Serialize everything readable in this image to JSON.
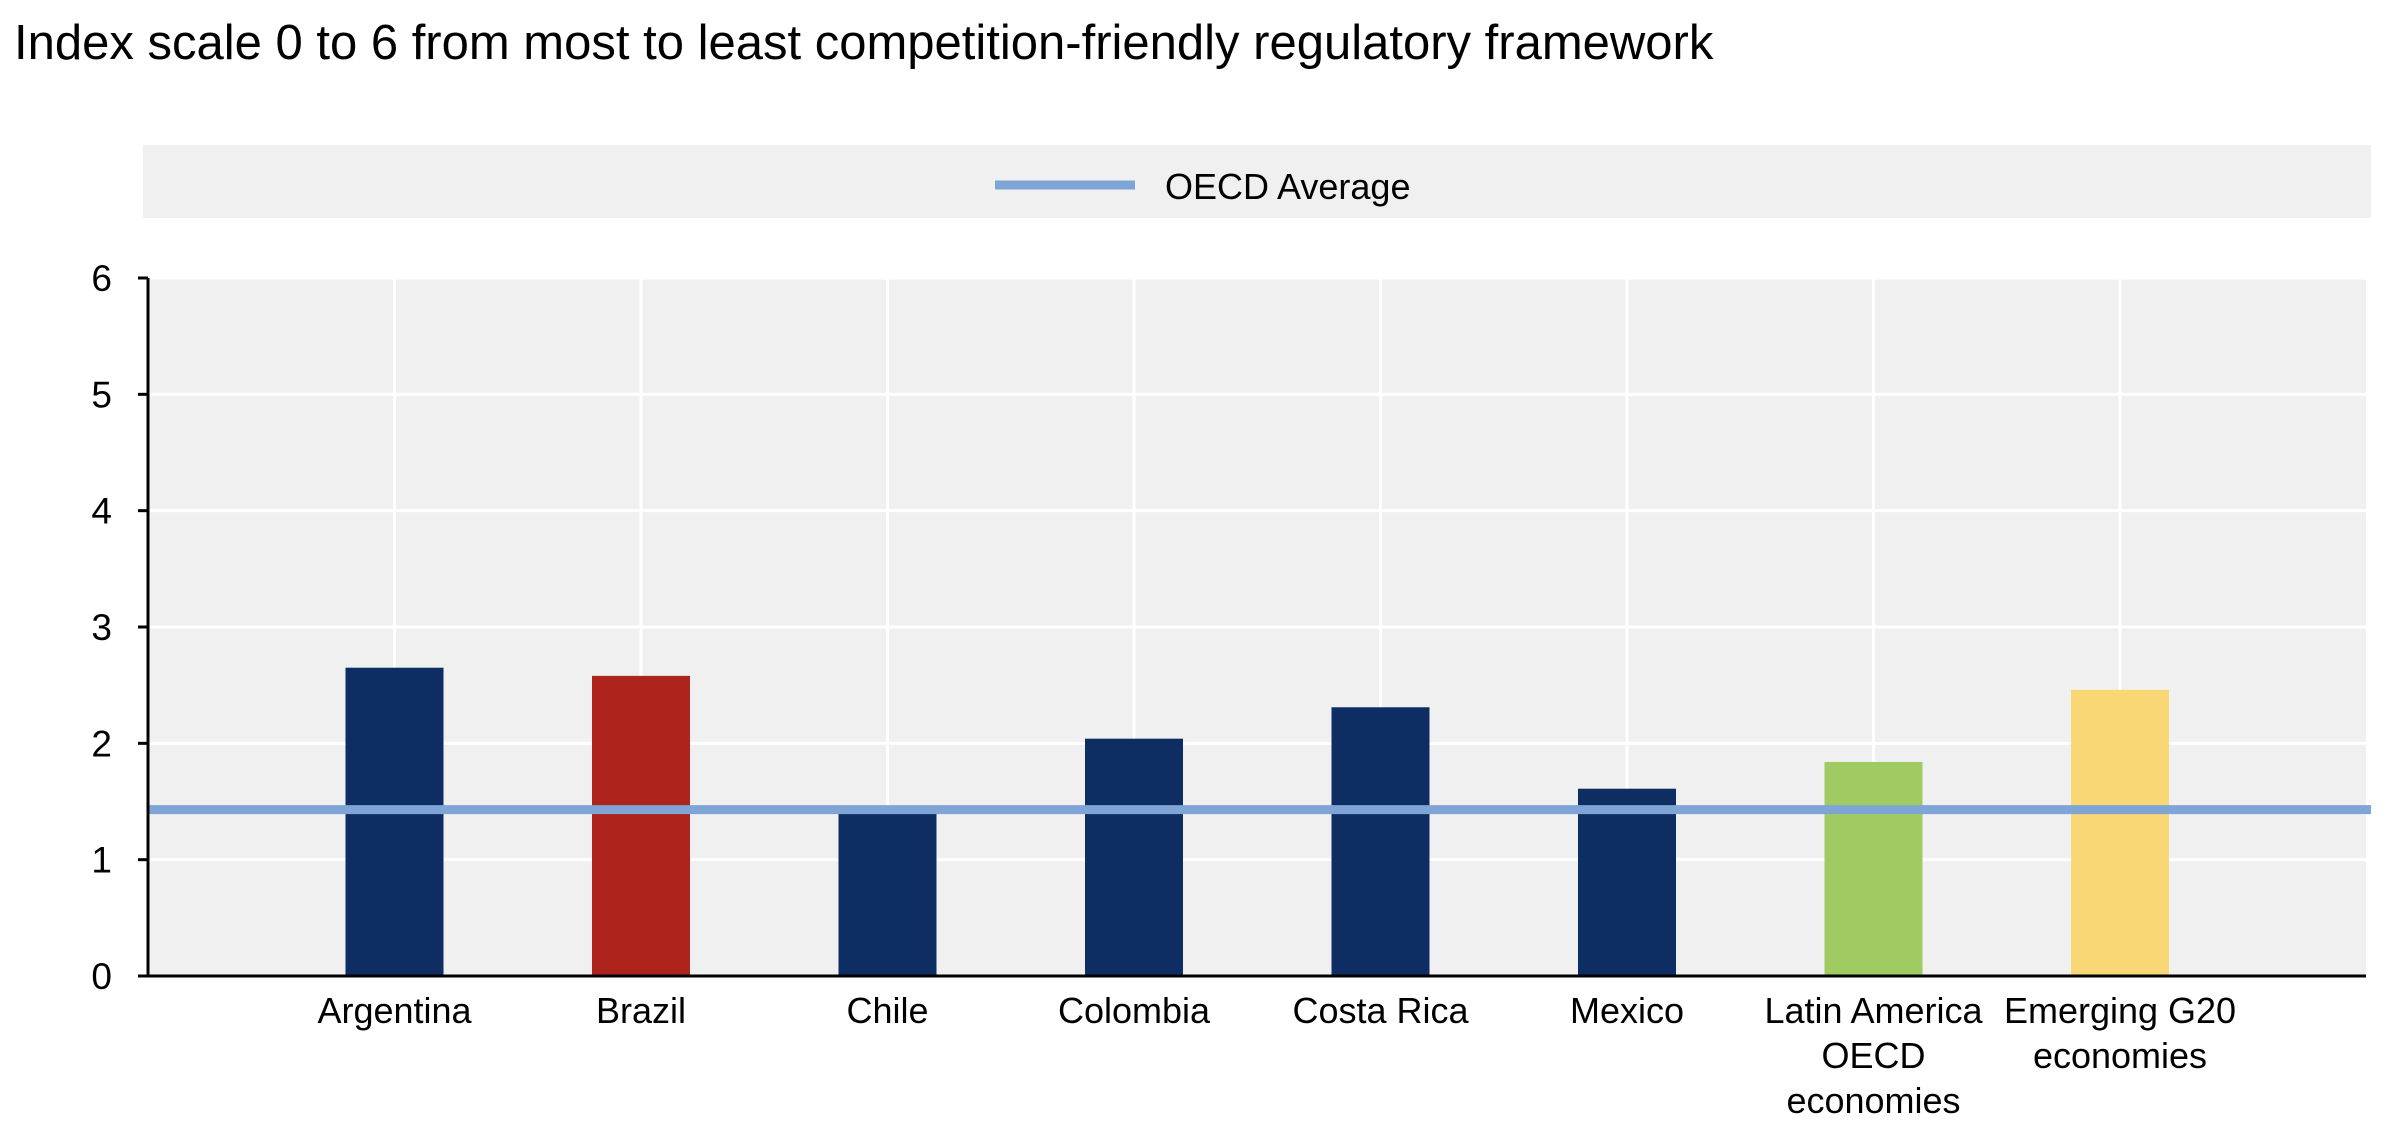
{
  "chart_data": {
    "type": "bar",
    "title": "Index scale 0 to 6 from most to least competition-friendly regulatory framework",
    "xlabel": "",
    "ylabel": "",
    "ylim": [
      0,
      6
    ],
    "yticks": [
      "0",
      "1",
      "2",
      "3",
      "4",
      "5",
      "6"
    ],
    "grid": true,
    "legend_position": "top",
    "categories": [
      [
        "Argentina"
      ],
      [
        "Brazil"
      ],
      [
        "Chile"
      ],
      [
        "Colombia"
      ],
      [
        "Costa Rica"
      ],
      [
        "Mexico"
      ],
      [
        "Latin America",
        "OECD",
        "economies"
      ],
      [
        "Emerging G20",
        "economies"
      ]
    ],
    "values": [
      2.65,
      2.58,
      1.42,
      2.04,
      2.31,
      1.61,
      1.84,
      2.46
    ],
    "bar_colors": [
      "#0e2d63",
      "#ae231b",
      "#0e2d63",
      "#0e2d63",
      "#0e2d63",
      "#0e2d63",
      "#9fcb62",
      "#f9d774"
    ],
    "reference_line": {
      "name": "OECD Average",
      "value": 1.43,
      "color": "#7fa4d6"
    },
    "colors": {
      "plot_background": "#f0f0f0",
      "gridline": "#ffffff",
      "axis": "#000000"
    }
  }
}
